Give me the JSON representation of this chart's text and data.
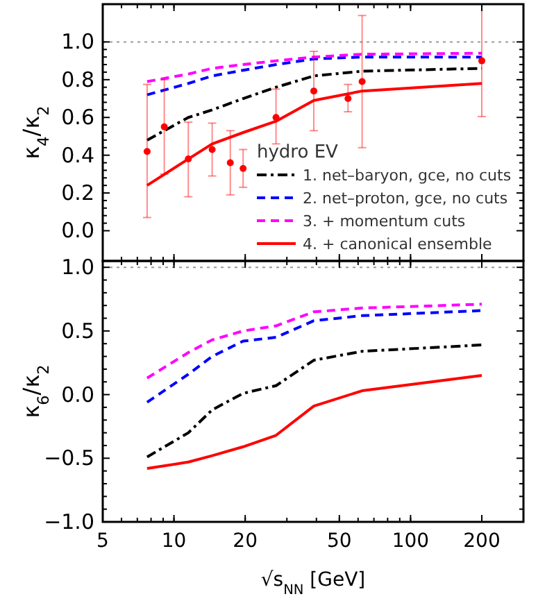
{
  "chart_data": [
    {
      "type": "line",
      "ylabel": "κ$_{4}$/κ$_{2}$",
      "legend_title": "hydro EV",
      "legend": "bottom right",
      "tick_labels": "y",
      "log": "x",
      "xlim": [
        5,
        300
      ],
      "xticks": [
        5,
        10,
        20,
        50,
        100,
        200
      ],
      "ylim": [
        -0.16,
        1.2
      ],
      "yticks": [
        {
          "value": 0,
          "label": "0.0"
        },
        {
          "value": 0.2,
          "label": "0.2"
        },
        {
          "value": 0.4,
          "label": "0.4"
        },
        {
          "value": 0.6,
          "label": "0.6"
        },
        {
          "value": 0.8,
          "label": "0.8"
        },
        {
          "value": 1,
          "label": "1.0"
        }
      ],
      "ref_lines": [
        {
          "axis": "y",
          "value": 1,
          "color": "#999999",
          "line_style": "dotted"
        }
      ],
      "series": [
        {
          "name": "1. net–baryon, gce, no cuts",
          "color": "#000000",
          "line_style": "dashdot",
          "x": [
            7.7,
            11.5,
            14.5,
            19.6,
            27,
            39,
            62.4,
            200
          ],
          "values": [
            0.48,
            0.6,
            0.64,
            0.7,
            0.76,
            0.82,
            0.845,
            0.86
          ]
        },
        {
          "name": "2. net–proton, gce, no cuts",
          "color": "#0000ff",
          "line_style": "dashed",
          "x": [
            7.7,
            11.5,
            14.5,
            19.6,
            27,
            39,
            62.4,
            200
          ],
          "values": [
            0.72,
            0.78,
            0.82,
            0.85,
            0.88,
            0.91,
            0.92,
            0.92
          ]
        },
        {
          "name": "3. + momentum cuts",
          "color": "#ff00ff",
          "line_style": "dashed",
          "x": [
            7.7,
            11.5,
            14.5,
            19.6,
            27,
            39,
            62.4,
            200
          ],
          "values": [
            0.79,
            0.83,
            0.86,
            0.88,
            0.9,
            0.92,
            0.935,
            0.94
          ]
        },
        {
          "name": "4. + canonical ensemble",
          "color": "#ff0000",
          "line_style": "solid",
          "x": [
            7.7,
            11.5,
            14.5,
            19.6,
            27,
            39,
            62.4,
            200
          ],
          "values": [
            0.24,
            0.38,
            0.46,
            0.52,
            0.58,
            0.69,
            0.74,
            0.78
          ]
        },
        {
          "type": "scatter",
          "marker": "circle",
          "color": "#ff0000",
          "x": [
            7.7,
            9.1,
            11.5,
            14.5,
            17.3,
            19.6,
            27,
            39,
            54.4,
            62.4,
            200
          ],
          "values": [
            0.42,
            0.55,
            0.38,
            0.43,
            0.36,
            0.33,
            0.6,
            0.74,
            0.7,
            0.79,
            0.9
          ],
          "errors": [
            [
              0.07,
              0.775
            ],
            [
              0.3,
              0.8
            ],
            [
              0.18,
              0.575
            ],
            [
              0.29,
              0.57
            ],
            [
              0.19,
              0.53
            ],
            [
              0.23,
              0.43
            ],
            [
              0.46,
              0.75
            ],
            [
              0.53,
              0.95
            ],
            [
              0.63,
              0.775
            ],
            [
              0.44,
              1.14
            ],
            [
              0.605,
              1.2
            ]
          ]
        }
      ]
    },
    {
      "type": "line",
      "xlabel": "√s$_{NN}$ [GeV]",
      "ylabel": "κ$_{6}$/κ$_{2}$",
      "log": "x",
      "xlim": [
        5,
        300
      ],
      "xticks": [
        5,
        10,
        20,
        50,
        100,
        200
      ],
      "ylim": [
        -1,
        1.05
      ],
      "yticks": [
        {
          "value": -1,
          "label": "−1.0"
        },
        {
          "value": -0.5,
          "label": "−0.5"
        },
        {
          "value": 0,
          "label": "0.0"
        },
        {
          "value": 0.5,
          "label": "0.5"
        },
        {
          "value": 1,
          "label": "1.0"
        }
      ],
      "ref_lines": [
        {
          "axis": "y",
          "value": 1,
          "color": "#999999",
          "line_style": "dotted"
        }
      ],
      "series": [
        {
          "color": "#000000",
          "line_style": "dashdot",
          "x": [
            7.7,
            11.5,
            14.5,
            19.6,
            27,
            39,
            62.4,
            200
          ],
          "values": [
            -0.49,
            -0.3,
            -0.12,
            0.01,
            0.07,
            0.27,
            0.34,
            0.39
          ]
        },
        {
          "color": "#0000ff",
          "line_style": "dashed",
          "x": [
            7.7,
            11.5,
            14.5,
            19.6,
            27,
            39,
            62.4,
            200
          ],
          "values": [
            -0.06,
            0.16,
            0.3,
            0.42,
            0.45,
            0.58,
            0.62,
            0.66
          ]
        },
        {
          "color": "#ff00ff",
          "line_style": "dashed",
          "x": [
            7.7,
            11.5,
            14.5,
            19.6,
            27,
            39,
            62.4,
            200
          ],
          "values": [
            0.13,
            0.33,
            0.43,
            0.5,
            0.54,
            0.65,
            0.68,
            0.71
          ]
        },
        {
          "color": "#ff0000",
          "line_style": "solid",
          "x": [
            7.7,
            11.5,
            14.5,
            19.6,
            27,
            39,
            62.4,
            200
          ],
          "values": [
            -0.58,
            -0.53,
            -0.48,
            -0.41,
            -0.32,
            -0.09,
            0.03,
            0.15
          ]
        }
      ]
    }
  ]
}
